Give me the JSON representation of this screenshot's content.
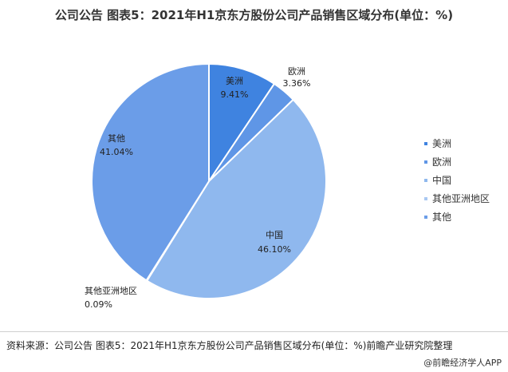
{
  "title": "公司公告 图表5：2021年H1京东方股份公司产品销售区域分布(单位：%)",
  "chart_data": {
    "type": "pie",
    "unit": "%",
    "slices": [
      {
        "label": "美洲",
        "value": 9.41,
        "value_text": "9.41%",
        "color": "#3f83e0"
      },
      {
        "label": "欧洲",
        "value": 3.36,
        "value_text": "3.36%",
        "color": "#5f96e6"
      },
      {
        "label": "中国",
        "value": 46.1,
        "value_text": "46.10%",
        "color": "#8fb8ee"
      },
      {
        "label": "其他亚洲地区",
        "value": 0.09,
        "value_text": "0.09%",
        "color": "#a9c8f2"
      },
      {
        "label": "其他",
        "value": 41.04,
        "value_text": "41.04%",
        "color": "#6b9de8"
      }
    ],
    "legend_position": "right"
  },
  "legend": [
    "美洲",
    "欧洲",
    "中国",
    "其他亚洲地区",
    "其他"
  ],
  "footer": {
    "source": "资料来源：公司公告 图表5：2021年H1京东方股份公司产品销售区域分布(单位：%)前瞻产业研究院整理",
    "credit": "@前瞻经济学人APP"
  }
}
